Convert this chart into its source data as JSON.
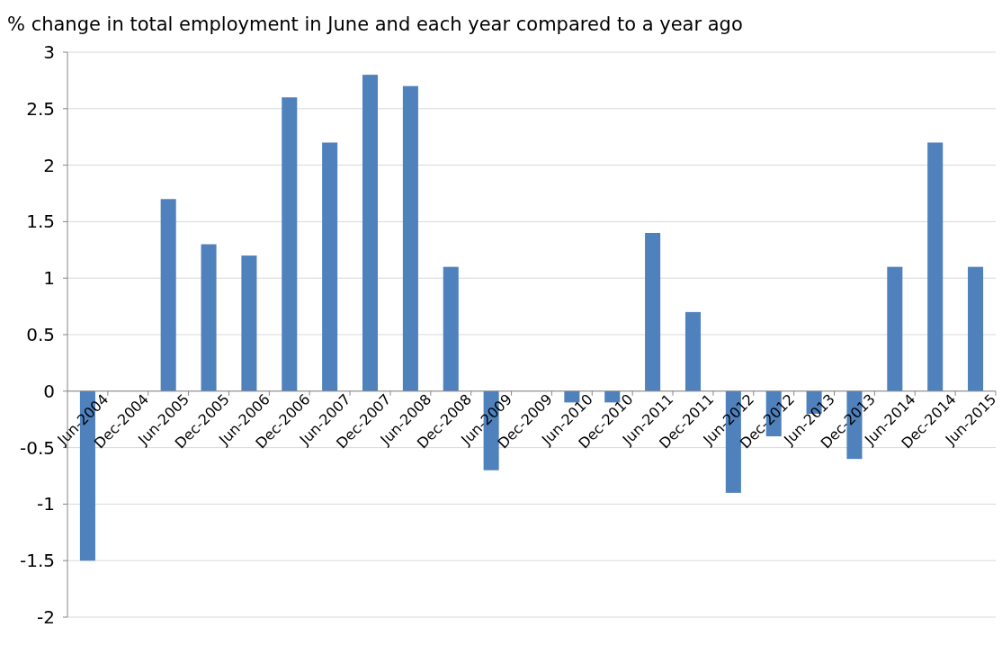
{
  "chart_data": {
    "type": "bar",
    "title": "% change in total employment in June and each year compared to a year ago",
    "categories": [
      "Jun-2004",
      "Dec-2004",
      "Jun-2005",
      "Dec-2005",
      "Jun-2006",
      "Dec-2006",
      "Jun-2007",
      "Dec-2007",
      "Jun-2008",
      "Dec-2008",
      "Jun-2009",
      "Dec-2009",
      "Jun-2010",
      "Dec-2010",
      "Jun-2011",
      "Dec-2011",
      "Jun-2012",
      "Dec-2012",
      "Jun-2013",
      "Dec-2013",
      "Jun-2014",
      "Dec-2014",
      "Jun-2015"
    ],
    "values": [
      -1.5,
      0,
      1.7,
      1.3,
      1.2,
      2.6,
      2.2,
      2.8,
      2.7,
      1.1,
      -0.7,
      0,
      -0.1,
      -0.1,
      1.4,
      0.7,
      -0.9,
      -0.4,
      -0.2,
      -0.6,
      1.1,
      2.2,
      1.1
    ],
    "color": "#4f81bd",
    "ylim": [
      -2,
      3
    ],
    "yticks": [
      -2,
      -1.5,
      -1,
      -0.5,
      0,
      0.5,
      1,
      1.5,
      2,
      2.5,
      3
    ],
    "grid": "y"
  }
}
